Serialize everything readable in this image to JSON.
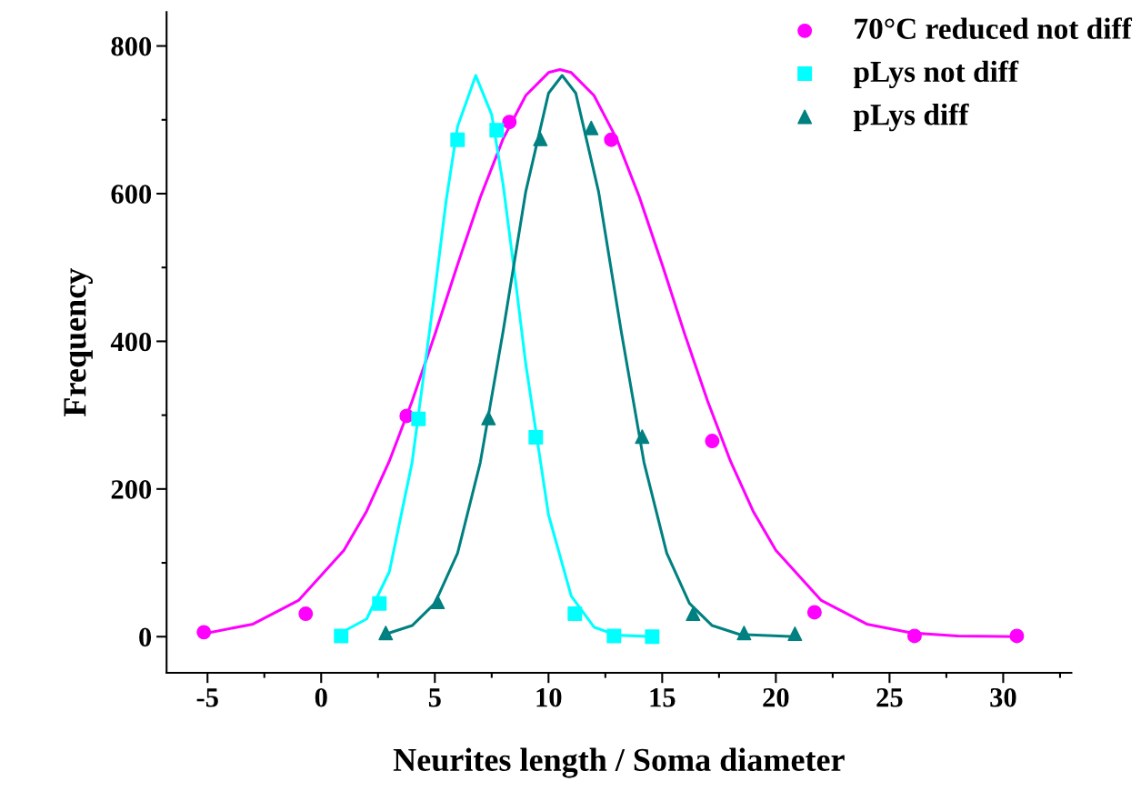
{
  "chart_data": {
    "type": "scatter",
    "xlabel": "Neurites length / Soma diameter",
    "ylabel": "Frequency",
    "xlim": [
      -6.8,
      33
    ],
    "ylim": [
      -49,
      846
    ],
    "xticks": [
      -5,
      0,
      5,
      10,
      15,
      20,
      25,
      30
    ],
    "yticks": [
      0,
      200,
      400,
      600,
      800
    ],
    "legend": "top right",
    "grid": false,
    "series": [
      {
        "name": "70°C reduced not diff",
        "marker": "circle",
        "color": "#ff00ff",
        "x": [
          -5.16,
          -0.68,
          3.76,
          8.28,
          12.76,
          17.2,
          21.7,
          26.1,
          30.6
        ],
        "values": [
          6,
          31,
          299,
          697,
          673,
          265,
          33,
          1,
          1
        ]
      },
      {
        "name": "pLys not diff",
        "marker": "square",
        "color": "#00ffff",
        "x": [
          0.88,
          2.56,
          4.28,
          6.0,
          7.72,
          9.44,
          11.16,
          12.88,
          14.56
        ],
        "values": [
          1,
          45,
          295,
          673,
          686,
          270,
          31,
          1,
          0
        ]
      },
      {
        "name": "pLys diff",
        "marker": "triangle",
        "color": "#008080",
        "x": [
          2.84,
          5.12,
          7.36,
          9.64,
          11.88,
          14.12,
          16.36,
          18.6,
          20.84
        ],
        "values": [
          5,
          47,
          296,
          674,
          689,
          271,
          31,
          5,
          4
        ]
      },
      {
        "type": "line",
        "marker": "none",
        "color": "#ff00ff",
        "x": [
          -5,
          -3,
          -1,
          1,
          2,
          3,
          4,
          5,
          6,
          7,
          8,
          9,
          10,
          10.5,
          11,
          12,
          13,
          14,
          15,
          16,
          17,
          18,
          19,
          20,
          22,
          24,
          26,
          28,
          30.7
        ],
        "values": [
          5,
          17,
          49,
          117,
          170,
          238,
          319,
          409,
          504,
          595,
          674,
          733,
          764,
          768,
          764,
          733,
          674,
          595,
          504,
          409,
          319,
          238,
          170,
          117,
          49,
          17,
          5,
          1,
          0
        ]
      },
      {
        "type": "line",
        "marker": "none",
        "color": "#00ffff",
        "x": [
          0.8,
          2,
          3,
          4,
          5,
          5.5,
          6,
          6.8,
          7.5,
          8,
          8.5,
          9,
          10,
          11,
          12,
          13,
          14.6
        ],
        "values": [
          4,
          24,
          88,
          236,
          468,
          591,
          691,
          760,
          707,
          613,
          494,
          369,
          165,
          55,
          13,
          2,
          0
        ]
      },
      {
        "type": "line",
        "marker": "none",
        "color": "#008080",
        "x": [
          2.8,
          4,
          5,
          6,
          7,
          8,
          9,
          10,
          10.6,
          11.2,
          12.2,
          13.2,
          14.2,
          15.2,
          16.2,
          17.2,
          18.4,
          20.8
        ],
        "values": [
          3,
          15,
          45,
          113,
          236,
          413,
          603,
          736,
          760,
          736,
          603,
          413,
          236,
          113,
          45,
          15,
          3,
          0
        ]
      }
    ]
  }
}
